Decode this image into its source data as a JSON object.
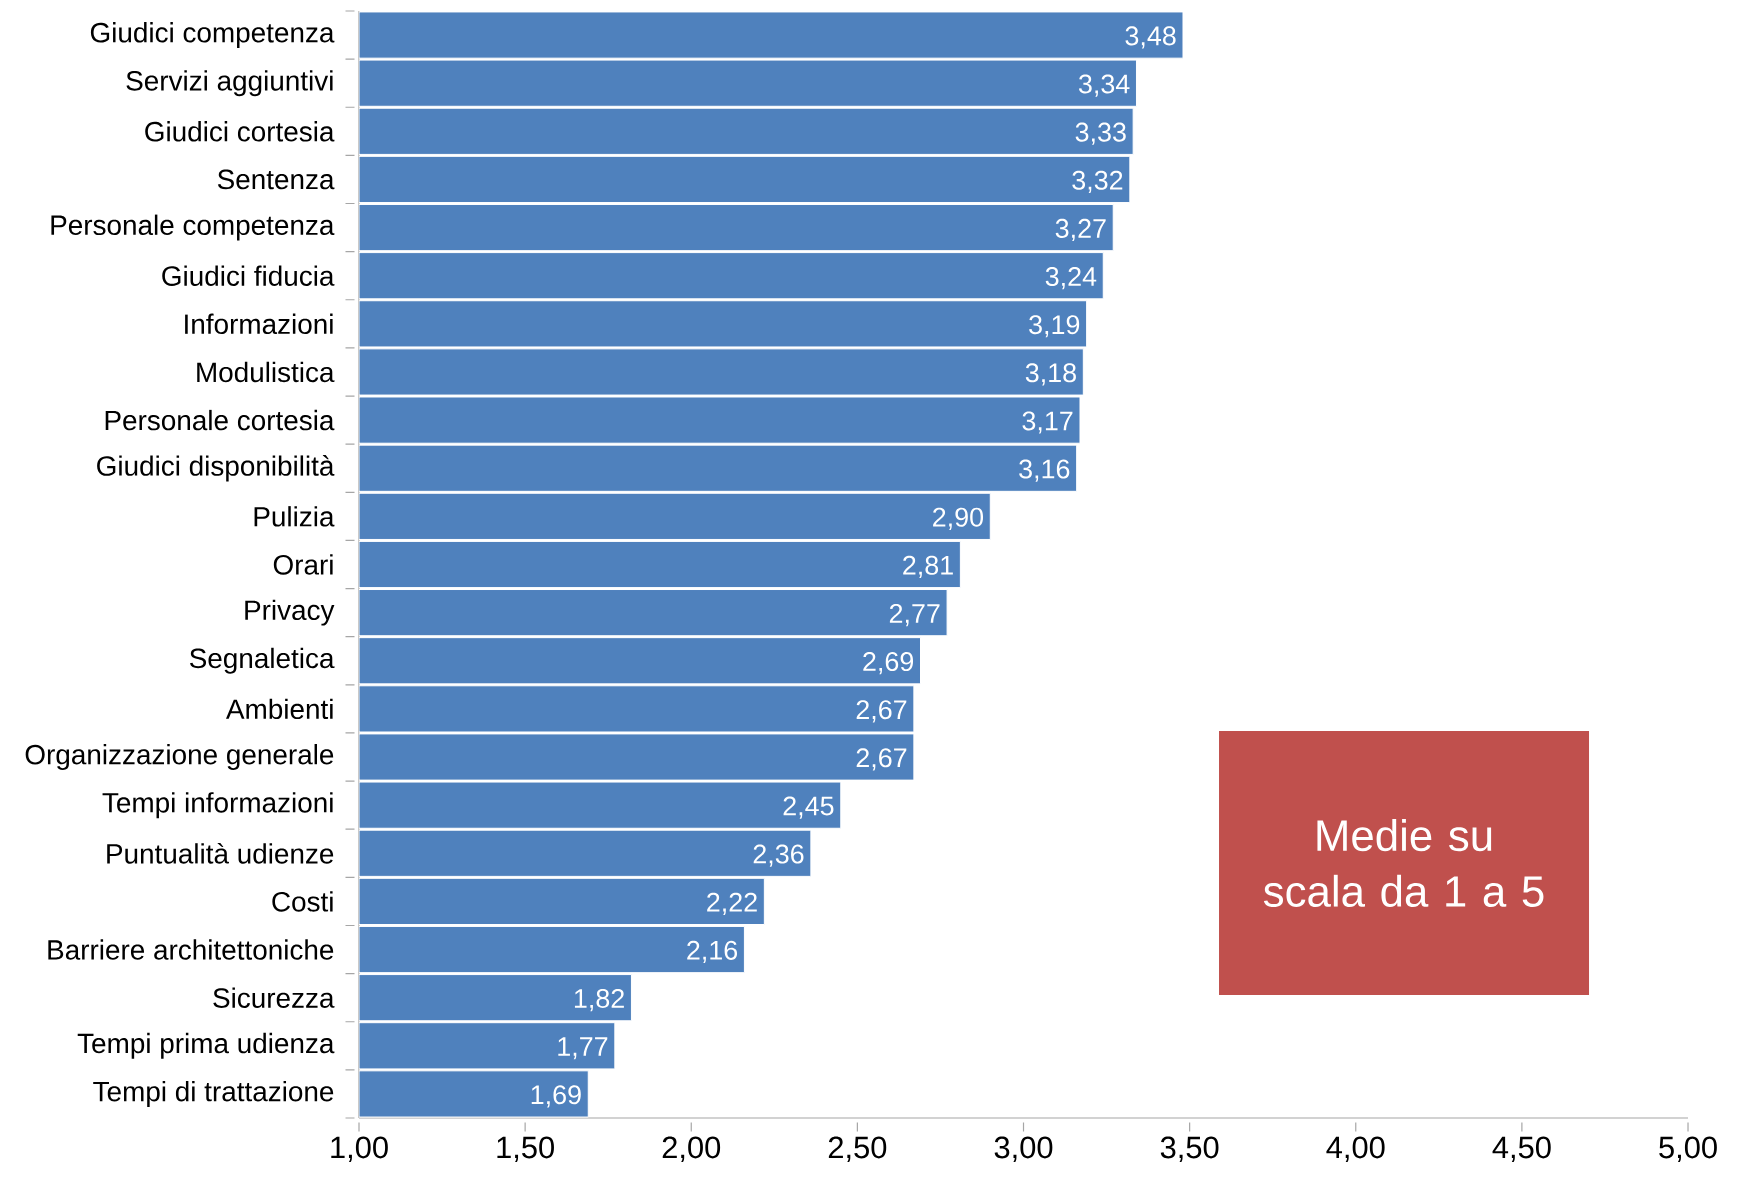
{
  "chart_data": {
    "type": "bar",
    "orientation": "horizontal",
    "categories": [
      "Giudici competenza",
      "Servizi aggiuntivi",
      "Giudici cortesia",
      "Sentenza",
      "Personale competenza",
      "Giudici fiducia",
      "Informazioni",
      "Modulistica",
      "Personale cortesia",
      "Giudici disponibilità",
      "Pulizia",
      "Orari",
      "Privacy",
      "Segnaletica",
      "Ambienti",
      "Organizzazione generale",
      "Tempi informazioni",
      "Puntualità udienze",
      "Costi",
      "Barriere architettoniche",
      "Sicurezza",
      "Tempi prima udienza",
      "Tempi di trattazione"
    ],
    "values": [
      3.48,
      3.34,
      3.33,
      3.32,
      3.27,
      3.24,
      3.19,
      3.18,
      3.17,
      3.16,
      2.9,
      2.81,
      2.77,
      2.69,
      2.67,
      2.67,
      2.45,
      2.36,
      2.22,
      2.16,
      1.82,
      1.77,
      1.69
    ],
    "value_labels": [
      "3,48",
      "3,34",
      "3,33",
      "3,32",
      "3,27",
      "3,24",
      "3,19",
      "3,18",
      "3,17",
      "3,16",
      "2,90",
      "2,81",
      "2,77",
      "2,69",
      "2,67",
      "2,67",
      "2,45",
      "2,36",
      "2,22",
      "2,16",
      "1,82",
      "1,77",
      "1,69"
    ],
    "color": "#4f81bd",
    "xlim": [
      1,
      5
    ],
    "xticks": [
      {
        "value": 1,
        "label": "1,00"
      },
      {
        "value": 1.5,
        "label": "1,50"
      },
      {
        "value": 2,
        "label": "2,00"
      },
      {
        "value": 2.5,
        "label": "2,50"
      },
      {
        "value": 3,
        "label": "3,00"
      },
      {
        "value": 3.5,
        "label": "3,50"
      },
      {
        "value": 4,
        "label": "4,00"
      },
      {
        "value": 4.5,
        "label": "4,50"
      },
      {
        "value": 5,
        "label": "5,00"
      }
    ],
    "grid": false,
    "annotations": [
      "Medie su scala da 1 a 5"
    ]
  }
}
